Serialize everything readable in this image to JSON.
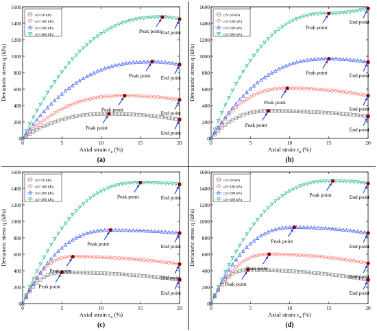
{
  "figure": {
    "panels": [
      "(a)",
      "(b)",
      "(c)",
      "(d)"
    ],
    "xlabel": "Axial strain ε",
    "xlabel_sub": "a",
    "xlabel_unit": "(%)",
    "ylabel": "Deviatoric stress q (kPa)",
    "legend": [
      {
        "label": "σ3=50 kPa",
        "symbol": "□",
        "color": "#808080"
      },
      {
        "label": "σ3=100 kPa",
        "symbol": "○",
        "color": "#ff6666"
      },
      {
        "label": "σ3=200 kPa",
        "symbol": "△",
        "color": "#3355ff"
      },
      {
        "label": "σ3=400 kPa",
        "symbol": "▽",
        "color": "#22bb88"
      }
    ],
    "annotations": {
      "peak": "Peak point",
      "end": "End point"
    },
    "colors": {
      "peak_marker": "#8b0000",
      "arrow": "#1a3dcc",
      "axis": "#000000"
    }
  },
  "chart_data": [
    {
      "type": "line",
      "panel": "(a)",
      "xlim": [
        0,
        20
      ],
      "ylim": [
        0,
        1600
      ],
      "xticks": [
        0,
        5,
        10,
        15,
        20
      ],
      "yticks": [
        0,
        200,
        400,
        600,
        800,
        1000,
        1200,
        1400,
        1600
      ],
      "legend_position": "top-left",
      "series": [
        {
          "name": "σ3=50 kPa",
          "peak": [
            11,
            300
          ],
          "end_value": 230
        },
        {
          "name": "σ3=100 kPa",
          "peak": [
            13,
            520
          ],
          "end_value": 470
        },
        {
          "name": "σ3=200 kPa",
          "peak": [
            16.5,
            935
          ],
          "end_value": 900
        },
        {
          "name": "σ3=400 kPa",
          "peak": [
            17.8,
            1475
          ],
          "end_value": 1450
        }
      ]
    },
    {
      "type": "line",
      "panel": "(b)",
      "xlim": [
        0,
        20
      ],
      "ylim": [
        0,
        1600
      ],
      "xticks": [
        0,
        5,
        10,
        15,
        20
      ],
      "yticks": [
        0,
        200,
        400,
        600,
        800,
        1000,
        1200,
        1400,
        1600
      ],
      "legend_position": "top-left",
      "series": [
        {
          "name": "σ3=50 kPa",
          "peak": [
            7.3,
            335
          ],
          "end_value": 270
        },
        {
          "name": "σ3=100 kPa",
          "peak": [
            9.7,
            610
          ],
          "end_value": 520
        },
        {
          "name": "σ3=200 kPa",
          "peak": [
            15,
            970
          ],
          "end_value": 930
        },
        {
          "name": "σ3=400 kPa",
          "peak": [
            15,
            1520
          ],
          "end_value": 1580
        }
      ]
    },
    {
      "type": "line",
      "panel": "(c)",
      "xlim": [
        0,
        20
      ],
      "ylim": [
        0,
        1600
      ],
      "xticks": [
        0,
        5,
        10,
        15,
        20
      ],
      "yticks": [
        0,
        200,
        400,
        600,
        800,
        1000,
        1200,
        1400,
        1600
      ],
      "legend_position": "top-left",
      "series": [
        {
          "name": "σ3=50 kPa",
          "peak": [
            5,
            380
          ],
          "end_value": 290
        },
        {
          "name": "σ3=100 kPa",
          "peak": [
            6.4,
            570
          ],
          "end_value": 480
        },
        {
          "name": "σ3=200 kPa",
          "peak": [
            11.2,
            895
          ],
          "end_value": 860
        },
        {
          "name": "σ3=400 kPa",
          "peak": [
            15,
            1470
          ],
          "end_value": 1450
        }
      ]
    },
    {
      "type": "line",
      "panel": "(d)",
      "xlim": [
        0,
        20
      ],
      "ylim": [
        0,
        1600
      ],
      "xticks": [
        0,
        5,
        10,
        15,
        20
      ],
      "yticks": [
        0,
        200,
        400,
        600,
        800,
        1000,
        1200,
        1400,
        1600
      ],
      "legend_position": "top-left",
      "series": [
        {
          "name": "σ3=50 kPa",
          "peak": [
            4.7,
            410
          ],
          "end_value": 290
        },
        {
          "name": "σ3=100 kPa",
          "peak": [
            7.4,
            600
          ],
          "end_value": 490
        },
        {
          "name": "σ3=200 kPa",
          "peak": [
            10.6,
            930
          ],
          "end_value": 860
        },
        {
          "name": "σ3=400 kPa",
          "peak": [
            15.5,
            1490
          ],
          "end_value": 1460
        }
      ]
    }
  ]
}
